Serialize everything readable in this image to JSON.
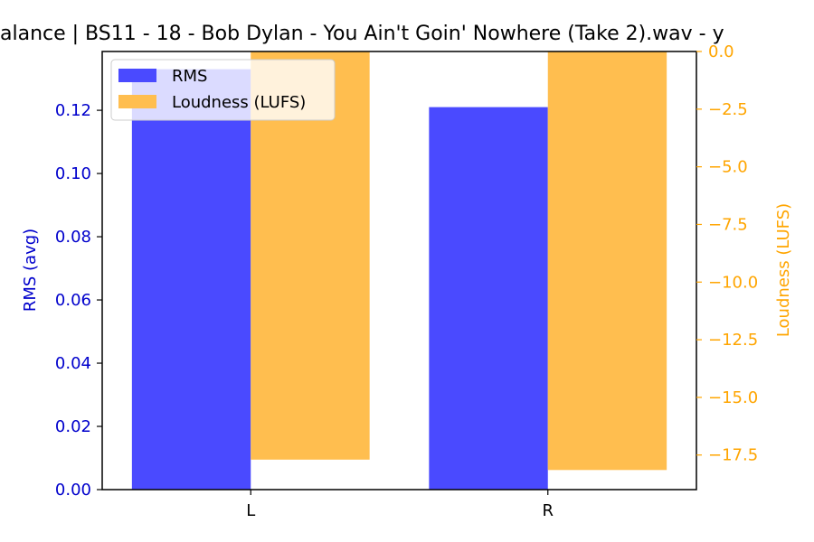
{
  "chart_data": {
    "type": "bar",
    "title": "alance | BS11 - 18 - Bob Dylan - You Ain't Goin' Nowhere (Take 2).wav - y",
    "categories": [
      "L",
      "R"
    ],
    "series": [
      {
        "name": "RMS",
        "axis": "left",
        "values": [
          0.133,
          0.121
        ],
        "color": "#4a4aff"
      },
      {
        "name": "Loudness (LUFS)",
        "axis": "right",
        "values": [
          -17.7,
          -18.15
        ],
        "color": "#ffbe4f"
      }
    ],
    "ylabel_left": "RMS (avg)",
    "ylabel_right": "Loudness (LUFS)",
    "ylim_left": [
      0,
      0.1386
    ],
    "ylim_right": [
      -19.0,
      0
    ],
    "yticks_left": [
      "0.00",
      "0.02",
      "0.04",
      "0.06",
      "0.08",
      "0.10",
      "0.12"
    ],
    "yticks_right": [
      "0.0",
      "−2.5",
      "−5.0",
      "−7.5",
      "−10.0",
      "−12.5",
      "−15.0",
      "−17.5"
    ],
    "left_axis_color": "#0000cc",
    "right_axis_color": "#ffa500",
    "grid": false,
    "legend_position": "top-left"
  }
}
